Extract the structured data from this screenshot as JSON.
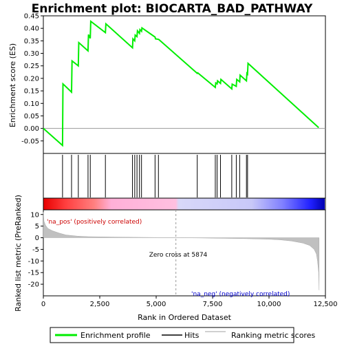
{
  "title": "Enrichment plot: BIOCARTA_BAD_PATHWAY",
  "colors": {
    "profile": "#00ee00",
    "hits": "#000000",
    "ranking": "#c0c0c0",
    "pos_text": "#cc0000",
    "neg_text": "#0000cc"
  },
  "annotations": {
    "pos_label": "'na_pos' (positively correlated)",
    "neg_label": "'na_neg' (negatively correlated)",
    "zero_cross": "Zero cross at 5874"
  },
  "legend": {
    "profile": "Enrichment profile",
    "hits": "Hits",
    "ranking": "Ranking metric scores"
  },
  "chart_data": [
    {
      "type": "line",
      "name": "enrichment-profile",
      "ylabel": "Enrichment score (ES)",
      "xlim": [
        0,
        12500
      ],
      "ylim": [
        -0.1,
        0.45
      ],
      "yticks": [
        -0.05,
        0.0,
        0.05,
        0.1,
        0.15,
        0.2,
        0.25,
        0.3,
        0.35,
        0.4,
        0.45
      ],
      "ytick_labels": [
        "-0.05",
        "0.00",
        "0.05",
        "0.10",
        "0.15",
        "0.20",
        "0.25",
        "0.30",
        "0.35",
        "0.40",
        "0.45"
      ],
      "x": [
        0,
        850,
        870,
        1250,
        1270,
        1550,
        1570,
        1980,
        2000,
        2080,
        2100,
        2750,
        2770,
        3950,
        3970,
        4050,
        4070,
        4150,
        4170,
        4260,
        4280,
        4350,
        4370,
        4950,
        4970,
        5100,
        5120,
        6820,
        6840,
        7620,
        7640,
        7700,
        7720,
        7850,
        7870,
        8350,
        8370,
        8550,
        8570,
        8700,
        8720,
        9000,
        9020,
        9050,
        9070,
        12200
      ],
      "y": [
        0.0,
        -0.068,
        0.178,
        0.145,
        0.27,
        0.25,
        0.343,
        0.31,
        0.375,
        0.36,
        0.428,
        0.383,
        0.418,
        0.322,
        0.358,
        0.35,
        0.373,
        0.367,
        0.39,
        0.38,
        0.395,
        0.388,
        0.402,
        0.365,
        0.358,
        0.356,
        0.355,
        0.22,
        0.222,
        0.164,
        0.182,
        0.178,
        0.19,
        0.18,
        0.196,
        0.158,
        0.177,
        0.168,
        0.196,
        0.186,
        0.213,
        0.19,
        0.22,
        0.217,
        0.26,
        0.003
      ]
    },
    {
      "type": "hits",
      "name": "hits",
      "x": [
        850,
        1250,
        1550,
        1980,
        2080,
        2750,
        3950,
        4050,
        4150,
        4260,
        4350,
        4950,
        5100,
        6820,
        7620,
        7700,
        7850,
        8350,
        8550,
        8700,
        9000,
        9050
      ]
    },
    {
      "type": "area",
      "name": "ranked-list-metric",
      "xlabel": "Rank in Ordered Dataset",
      "ylabel": "Ranked list metric (PreRanked)",
      "xlim": [
        0,
        12500
      ],
      "ylim": [
        -25,
        12
      ],
      "xticks": [
        0,
        2500,
        5000,
        7500,
        10000,
        12500
      ],
      "xtick_labels": [
        "0",
        "2,500",
        "5,000",
        "7,500",
        "10,000",
        "12,500"
      ],
      "yticks": [
        -20,
        -15,
        -10,
        -5,
        0,
        5,
        10
      ],
      "ytick_labels": [
        "-20",
        "-15",
        "-10",
        "-5",
        "0",
        "5",
        "10"
      ],
      "x": [
        0,
        30,
        100,
        200,
        400,
        700,
        1000,
        1500,
        2000,
        3000,
        4000,
        5000,
        5874,
        7000,
        8000,
        9000,
        10000,
        10500,
        11000,
        11500,
        11800,
        12000,
        12100,
        12150,
        12200,
        12220
      ],
      "values": [
        11.0,
        7.0,
        5.3,
        4.0,
        3.0,
        2.0,
        1.2,
        0.7,
        0.45,
        0.3,
        0.2,
        0.1,
        0.0,
        -0.1,
        -0.25,
        -0.4,
        -0.65,
        -0.9,
        -1.4,
        -2.3,
        -3.3,
        -5.0,
        -7.0,
        -10.0,
        -15.0,
        -22.5
      ]
    }
  ]
}
